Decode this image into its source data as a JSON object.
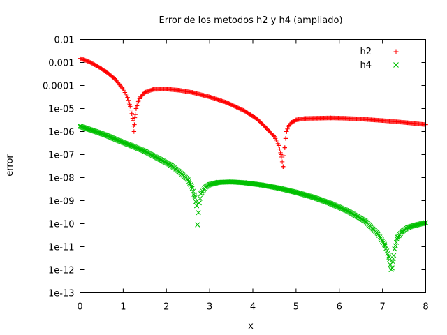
{
  "chart_data": {
    "type": "scatter",
    "title": "Error de los metodos h2 y h4 (ampliado)",
    "xlabel": "x",
    "ylabel": "error",
    "xlim": [
      0,
      8
    ],
    "ylim": [
      1e-13,
      0.01
    ],
    "yscale": "log",
    "grid": false,
    "legend_position": "top-right",
    "x_ticks": [
      0,
      1,
      2,
      3,
      4,
      5,
      6,
      7,
      8
    ],
    "x_tick_labels": [
      "0",
      "1",
      "2",
      "3",
      "4",
      "5",
      "6",
      "7",
      "8"
    ],
    "y_ticks": [
      1e-13,
      1e-12,
      1e-11,
      1e-10,
      1e-09,
      1e-08,
      1e-07,
      1e-06,
      1e-05,
      0.0001,
      0.001,
      0.01
    ],
    "y_tick_labels": [
      "1e-13",
      "1e-12",
      "1e-11",
      "1e-10",
      "1e-09",
      "1e-08",
      "1e-07",
      "1e-06",
      "1e-05",
      "0.0001",
      "0.001",
      "0.01"
    ],
    "series": [
      {
        "name": "h2",
        "marker": "plus",
        "color": "#ff0000",
        "x": [
          0,
          0.2,
          0.4,
          0.6,
          0.8,
          1.0,
          1.1,
          1.15,
          1.2,
          1.23,
          1.25,
          1.27,
          1.3,
          1.35,
          1.4,
          1.5,
          1.7,
          2.0,
          2.3,
          2.6,
          3.0,
          3.4,
          3.8,
          4.1,
          4.3,
          4.5,
          4.6,
          4.65,
          4.7,
          4.72,
          4.74,
          4.76,
          4.78,
          4.82,
          4.9,
          5.0,
          5.2,
          5.5,
          5.8,
          6.1,
          6.5,
          7.0,
          7.5,
          8.0
        ],
        "y": [
          0.0015,
          0.0011,
          0.0007,
          0.0004,
          0.0002,
          7e-05,
          3e-05,
          1.5e-05,
          6e-06,
          3e-06,
          1e-06,
          4e-06,
          1e-05,
          2e-05,
          3.2e-05,
          5e-05,
          6.8e-05,
          7e-05,
          6.2e-05,
          5e-05,
          3.2e-05,
          1.8e-05,
          8e-06,
          3.5e-06,
          1.5e-06,
          6e-07,
          2.5e-07,
          1e-07,
          3e-08,
          9e-08,
          2e-07,
          5e-07,
          1e-06,
          1.7e-06,
          2.5e-06,
          3.2e-06,
          3.7e-06,
          3.8e-06,
          3.9e-06,
          3.8e-06,
          3.5e-06,
          3e-06,
          2.5e-06,
          2e-06
        ]
      },
      {
        "name": "h4",
        "marker": "cross",
        "color": "#00c000",
        "x": [
          0,
          0.3,
          0.6,
          0.9,
          1.2,
          1.5,
          1.8,
          2.1,
          2.3,
          2.5,
          2.6,
          2.65,
          2.7,
          2.72,
          2.74,
          2.76,
          2.8,
          2.9,
          3.0,
          3.2,
          3.5,
          3.8,
          4.2,
          4.6,
          5.0,
          5.4,
          5.8,
          6.2,
          6.6,
          6.9,
          7.05,
          7.15,
          7.2,
          7.22,
          7.25,
          7.28,
          7.35,
          7.45,
          7.6,
          7.8,
          8.0
        ],
        "y": [
          1.7e-06,
          1.1e-06,
          7e-07,
          4e-07,
          2.4e-07,
          1.4e-07,
          7e-08,
          3.5e-08,
          1.8e-08,
          8e-09,
          3.5e-09,
          1.6e-09,
          6e-10,
          9e-11,
          3e-10,
          8e-10,
          2e-09,
          3.8e-09,
          5e-09,
          6.2e-09,
          6.5e-09,
          6e-09,
          4.8e-09,
          3.5e-09,
          2.3e-09,
          1.4e-09,
          7.5e-10,
          3.5e-10,
          1.3e-10,
          3.5e-11,
          1.2e-11,
          3.5e-12,
          1e-12,
          1.2e-12,
          3e-12,
          8e-12,
          2.5e-11,
          4.5e-11,
          7e-11,
          9e-11,
          1.1e-10
        ]
      }
    ]
  }
}
